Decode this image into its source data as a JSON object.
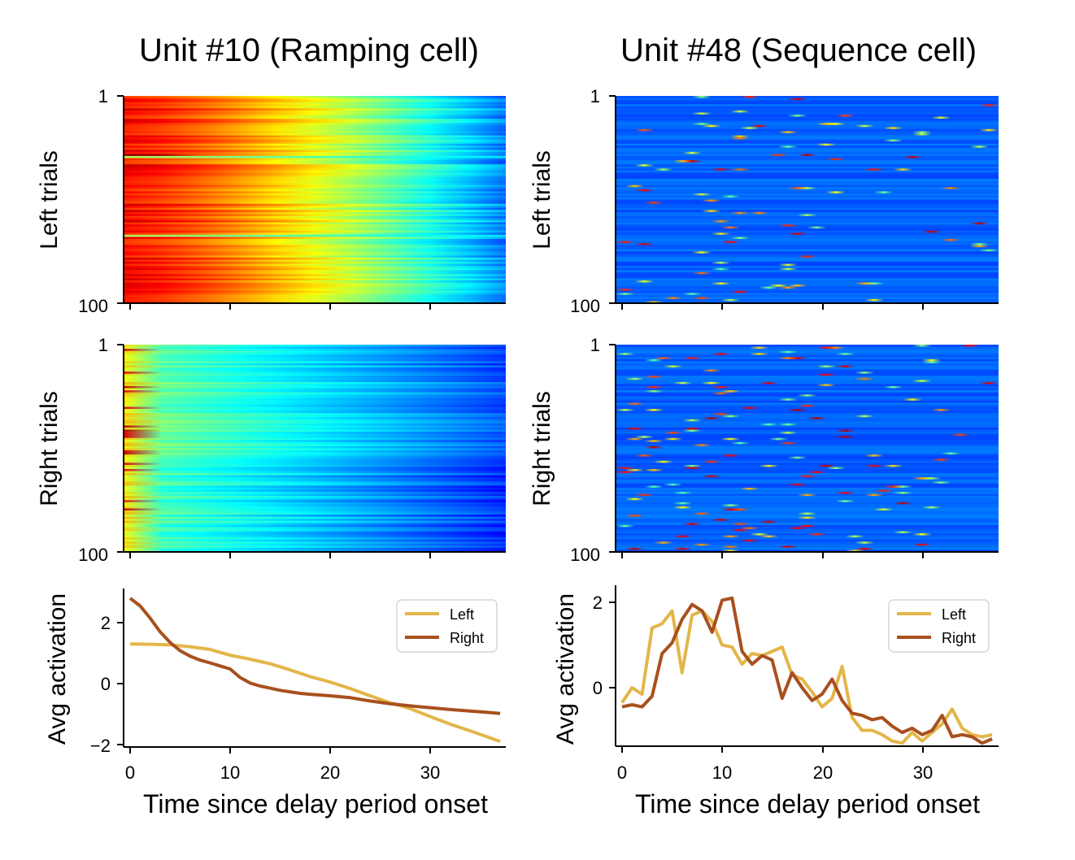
{
  "titles": {
    "left": "Unit #10 (Ramping cell)",
    "right": "Unit #48 (Sequence cell)"
  },
  "ylabels": {
    "left_trials": "Left trials",
    "right_trials": "Right trials",
    "avg": "Avg activation"
  },
  "xlabel": "Time since delay period onset",
  "heatmap_ticks": {
    "top": "1",
    "bottom": "100"
  },
  "xticks": [
    "0",
    "10",
    "20",
    "30"
  ],
  "yticks_unit10": [
    "2",
    "0",
    "−2"
  ],
  "yticks_unit48": [
    "2",
    "0"
  ],
  "legend": {
    "left": "Left",
    "right": "Right"
  },
  "colors": {
    "left": "#e3b64a",
    "right": "#a8501e"
  },
  "chart_data": [
    {
      "type": "heatmap",
      "title": "Unit #10 (Ramping cell)",
      "ylabel": "Left trials",
      "rows": 100,
      "x": [
        0,
        37
      ],
      "pattern": "high early, ramping down over time"
    },
    {
      "type": "heatmap",
      "title": "Unit #10 (Ramping cell)",
      "ylabel": "Right trials",
      "rows": 100,
      "x": [
        0,
        37
      ],
      "pattern": "low, brief high at onset"
    },
    {
      "type": "line",
      "title": "Unit #10 (Ramping cell)",
      "xlabel": "Time since delay period onset",
      "ylabel": "Avg activation",
      "xlim": [
        0,
        37
      ],
      "ylim": [
        -2,
        3
      ],
      "series": [
        {
          "name": "Left",
          "color": "#e3b64a",
          "x": [
            0,
            2,
            4,
            6,
            8,
            10,
            12,
            14,
            16,
            18,
            20,
            22,
            24,
            26,
            28,
            30,
            32,
            34,
            36,
            37
          ],
          "values": [
            1.3,
            1.29,
            1.27,
            1.21,
            1.12,
            0.93,
            0.8,
            0.65,
            0.45,
            0.23,
            0.05,
            -0.16,
            -0.4,
            -0.63,
            -0.82,
            -1.08,
            -1.33,
            -1.55,
            -1.78,
            -1.9
          ]
        },
        {
          "name": "Right",
          "color": "#a8501e",
          "x": [
            0,
            1,
            2,
            3,
            4,
            5,
            6,
            7,
            8,
            9,
            10,
            11,
            12,
            13,
            14,
            15,
            16,
            17,
            18,
            20,
            22,
            24,
            26,
            28,
            30,
            32,
            34,
            36,
            37
          ],
          "values": [
            2.8,
            2.55,
            2.15,
            1.7,
            1.35,
            1.08,
            0.9,
            0.77,
            0.68,
            0.58,
            0.48,
            0.2,
            0.02,
            -0.08,
            -0.15,
            -0.22,
            -0.27,
            -0.32,
            -0.35,
            -0.4,
            -0.46,
            -0.57,
            -0.66,
            -0.73,
            -0.79,
            -0.85,
            -0.9,
            -0.95,
            -0.98
          ]
        }
      ]
    },
    {
      "type": "heatmap",
      "title": "Unit #48 (Sequence cell)",
      "ylabel": "Left trials",
      "rows": 100,
      "x": [
        0,
        37
      ],
      "pattern": "sparse transient peaks"
    },
    {
      "type": "heatmap",
      "title": "Unit #48 (Sequence cell)",
      "ylabel": "Right trials",
      "rows": 100,
      "x": [
        0,
        37
      ],
      "pattern": "sparse transient peaks, denser early"
    },
    {
      "type": "line",
      "title": "Unit #48 (Sequence cell)",
      "xlabel": "Time since delay period onset",
      "ylabel": "Avg activation",
      "xlim": [
        0,
        37
      ],
      "ylim": [
        -1.5,
        2.3
      ],
      "series": [
        {
          "name": "Left",
          "color": "#e3b64a",
          "x": [
            0,
            1,
            2,
            3,
            4,
            5,
            6,
            7,
            8,
            9,
            10,
            11,
            12,
            13,
            14,
            15,
            16,
            17,
            18,
            19,
            20,
            21,
            22,
            23,
            24,
            25,
            26,
            27,
            28,
            29,
            30,
            31,
            32,
            33,
            34,
            35,
            36,
            37
          ],
          "values": [
            -0.35,
            0.0,
            -0.15,
            1.4,
            1.5,
            1.8,
            0.35,
            1.7,
            1.8,
            1.55,
            1.0,
            0.95,
            0.55,
            0.8,
            0.75,
            0.85,
            0.95,
            0.3,
            0.2,
            -0.1,
            -0.45,
            -0.25,
            0.5,
            -0.7,
            -1.0,
            -1.0,
            -1.1,
            -1.25,
            -1.3,
            -1.05,
            -1.25,
            -1.05,
            -0.85,
            -0.5,
            -0.95,
            -1.1,
            -1.15,
            -1.1
          ]
        },
        {
          "name": "Right",
          "color": "#a8501e",
          "x": [
            0,
            1,
            2,
            3,
            4,
            5,
            6,
            7,
            8,
            9,
            10,
            11,
            12,
            13,
            14,
            15,
            16,
            17,
            18,
            19,
            20,
            21,
            22,
            23,
            24,
            25,
            26,
            27,
            28,
            29,
            30,
            31,
            32,
            33,
            34,
            35,
            36,
            37
          ],
          "values": [
            -0.45,
            -0.4,
            -0.45,
            -0.2,
            0.8,
            1.05,
            1.6,
            1.95,
            1.8,
            1.3,
            2.05,
            2.1,
            0.85,
            0.55,
            0.75,
            0.65,
            -0.25,
            0.35,
            0.0,
            -0.3,
            -0.15,
            0.2,
            -0.3,
            -0.6,
            -0.65,
            -0.75,
            -0.7,
            -0.9,
            -1.05,
            -0.95,
            -1.1,
            -1.0,
            -0.65,
            -1.15,
            -1.1,
            -1.15,
            -1.3,
            -1.2
          ]
        }
      ]
    }
  ]
}
